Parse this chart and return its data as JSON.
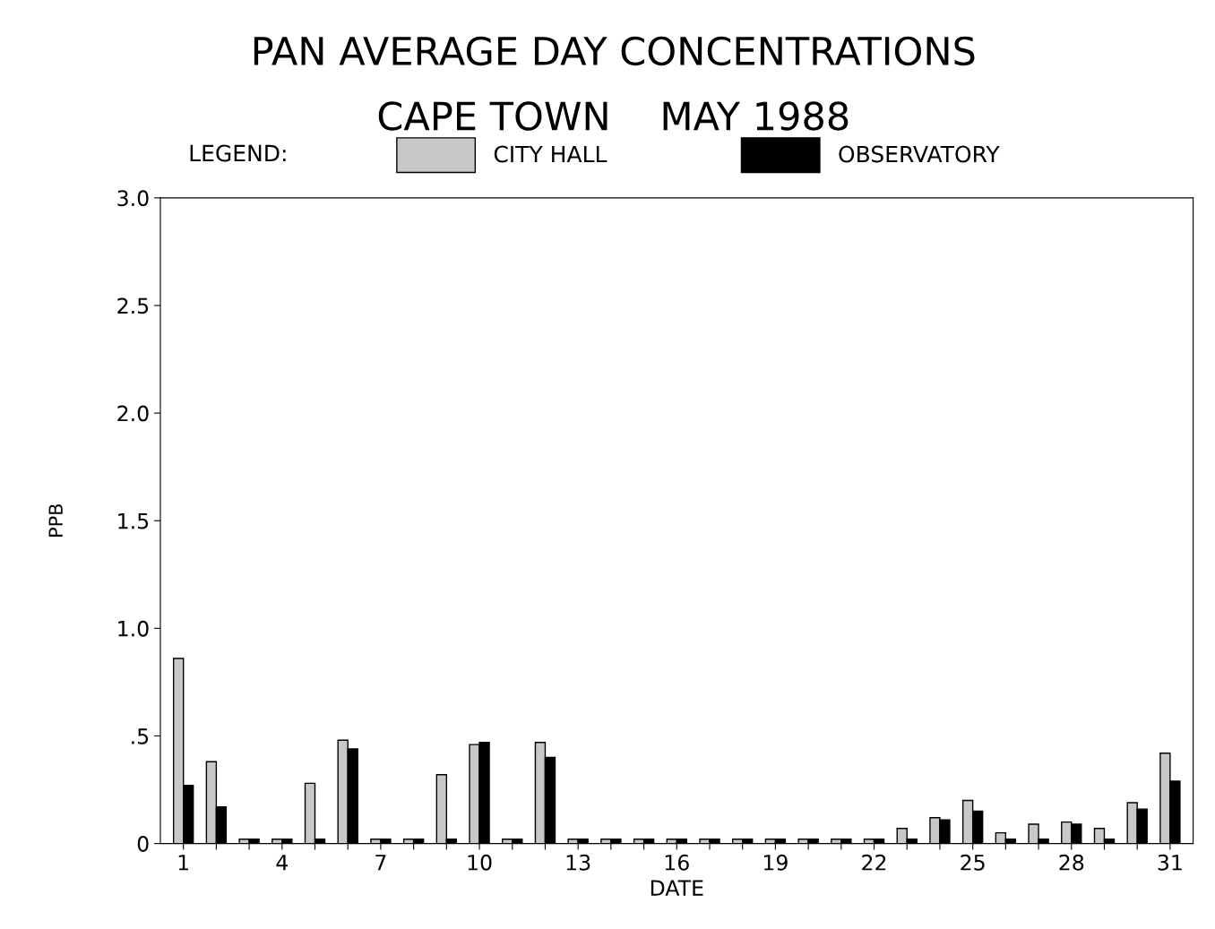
{
  "chart_data": {
    "type": "bar",
    "title": "PAN AVERAGE DAY CONCENTRATIONS",
    "subtitle": "CAPE TOWN    MAY 1988",
    "xlabel": "DATE",
    "ylabel": "PPB",
    "legend_title": "LEGEND:",
    "legend": "top",
    "grid": false,
    "categories": [
      "1",
      null,
      null,
      "4",
      null,
      null,
      "7",
      null,
      null,
      "10",
      null,
      null,
      "13",
      null,
      null,
      "16",
      null,
      null,
      "19",
      null,
      null,
      "22",
      null,
      null,
      "25",
      null,
      null,
      "28",
      null,
      null,
      "31"
    ],
    "series": [
      {
        "name": "CITY HALL",
        "color": "#c8c8c8",
        "values": [
          0.86,
          0.38,
          0.02,
          0.02,
          0.28,
          0.48,
          0.02,
          0.02,
          0.32,
          0.46,
          0.02,
          0.47,
          0.02,
          0.02,
          0.02,
          0.02,
          0.02,
          0.02,
          0.02,
          0.02,
          0.02,
          0.02,
          0.07,
          0.12,
          0.2,
          0.05,
          0.09,
          0.1,
          0.07,
          0.19,
          0.42
        ]
      },
      {
        "name": "OBSERVATORY",
        "color": "#000000",
        "values": [
          0.27,
          0.17,
          0.02,
          0.02,
          0.02,
          0.44,
          0.02,
          0.02,
          0.02,
          0.47,
          0.02,
          0.4,
          0.02,
          0.02,
          0.02,
          0.02,
          0.02,
          0.02,
          0.02,
          0.02,
          0.02,
          0.02,
          0.02,
          0.11,
          0.15,
          0.02,
          0.02,
          0.09,
          0.02,
          0.16,
          0.29
        ]
      }
    ],
    "ylim": [
      0,
      3.0
    ],
    "yticks": [
      {
        "value": 0,
        "label": "0"
      },
      {
        "value": 0.5,
        "label": ".5"
      },
      {
        "value": 1.0,
        "label": "1.0"
      },
      {
        "value": 1.5,
        "label": "1.5"
      },
      {
        "value": 2.0,
        "label": "2.0"
      },
      {
        "value": 2.5,
        "label": "2.5"
      },
      {
        "value": 3.0,
        "label": "3.0"
      }
    ]
  }
}
